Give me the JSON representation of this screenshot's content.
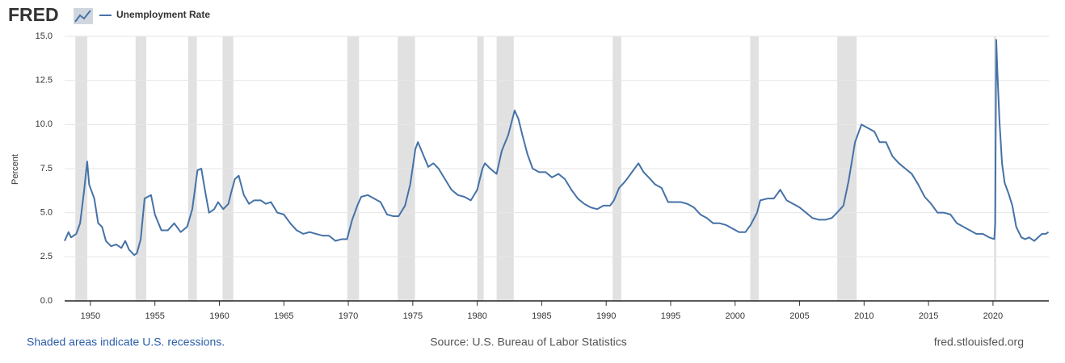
{
  "logo": "FRED",
  "chart_data": {
    "type": "line",
    "legend": "Unemployment Rate",
    "ylabel": "Percent",
    "xlim": [
      1948,
      2024.33
    ],
    "ylim": [
      0,
      15
    ],
    "xticks": [
      1950,
      1955,
      1960,
      1965,
      1970,
      1975,
      1980,
      1985,
      1990,
      1995,
      2000,
      2005,
      2010,
      2015,
      2020
    ],
    "yticks": [
      {
        "value": 0,
        "label": "0.0"
      },
      {
        "value": 2.5,
        "label": "2.5"
      },
      {
        "value": 5,
        "label": "5.0"
      },
      {
        "value": 7.5,
        "label": "7.5"
      },
      {
        "value": 10,
        "label": "10.0"
      },
      {
        "value": 12.5,
        "label": "12.5"
      },
      {
        "value": 15,
        "label": "15.0"
      }
    ],
    "grid": true,
    "color": "#4572a7",
    "recession_color": "#e1e1e1",
    "recessions": [
      [
        1948.83,
        1949.75
      ],
      [
        1953.5,
        1954.33
      ],
      [
        1957.58,
        1958.25
      ],
      [
        1960.25,
        1961.08
      ],
      [
        1969.92,
        1970.83
      ],
      [
        1973.83,
        1975.17
      ],
      [
        1980.0,
        1980.5
      ],
      [
        1981.5,
        1982.83
      ],
      [
        1990.5,
        1991.17
      ],
      [
        2001.17,
        2001.83
      ],
      [
        2007.92,
        2009.42
      ],
      [
        2020.08,
        2020.25
      ]
    ],
    "x": [
      1948.0,
      1948.3,
      1948.5,
      1948.9,
      1949.2,
      1949.5,
      1949.75,
      1949.9,
      1950.3,
      1950.6,
      1950.9,
      1951.2,
      1951.6,
      1952.0,
      1952.4,
      1952.7,
      1953.0,
      1953.4,
      1953.6,
      1953.9,
      1954.2,
      1954.7,
      1955.0,
      1955.5,
      1956.0,
      1956.5,
      1957.0,
      1957.5,
      1957.9,
      1958.3,
      1958.6,
      1958.9,
      1959.2,
      1959.6,
      1959.9,
      1960.3,
      1960.7,
      1960.9,
      1961.2,
      1961.5,
      1961.9,
      1962.3,
      1962.7,
      1963.2,
      1963.6,
      1964.0,
      1964.5,
      1965.0,
      1965.5,
      1966.0,
      1966.5,
      1967.0,
      1967.5,
      1968.0,
      1968.5,
      1969.0,
      1969.5,
      1969.9,
      1970.3,
      1970.7,
      1971.0,
      1971.5,
      1972.0,
      1972.5,
      1973.0,
      1973.5,
      1973.9,
      1974.4,
      1974.8,
      1975.2,
      1975.4,
      1975.8,
      1976.2,
      1976.6,
      1977.0,
      1977.5,
      1978.0,
      1978.5,
      1979.0,
      1979.5,
      1980.0,
      1980.4,
      1980.6,
      1981.0,
      1981.5,
      1981.9,
      1982.4,
      1982.9,
      1983.2,
      1983.5,
      1983.9,
      1984.3,
      1984.8,
      1985.3,
      1985.8,
      1986.3,
      1986.8,
      1987.3,
      1987.8,
      1988.3,
      1988.8,
      1989.3,
      1989.8,
      1990.3,
      1990.6,
      1991.0,
      1991.5,
      1992.0,
      1992.5,
      1992.9,
      1993.3,
      1993.8,
      1994.3,
      1994.8,
      1995.3,
      1995.8,
      1996.3,
      1996.8,
      1997.3,
      1997.8,
      1998.3,
      1998.8,
      1999.3,
      1999.8,
      2000.3,
      2000.8,
      2001.2,
      2001.7,
      2001.95,
      2002.5,
      2003.0,
      2003.5,
      2004.0,
      2004.5,
      2005.0,
      2005.5,
      2006.0,
      2006.5,
      2007.0,
      2007.5,
      2007.9,
      2008.4,
      2008.8,
      2009.3,
      2009.8,
      2010.3,
      2010.8,
      2011.2,
      2011.7,
      2012.2,
      2012.7,
      2013.2,
      2013.7,
      2014.2,
      2014.7,
      2015.2,
      2015.7,
      2016.2,
      2016.7,
      2017.2,
      2017.7,
      2018.2,
      2018.7,
      2019.2,
      2019.7,
      2020.1,
      2020.17,
      2020.25,
      2020.33,
      2020.5,
      2020.7,
      2020.9,
      2021.2,
      2021.5,
      2021.8,
      2022.2,
      2022.5,
      2022.8,
      2023.2,
      2023.5,
      2023.8,
      2024.1,
      2024.3
    ],
    "values": [
      3.4,
      3.9,
      3.6,
      3.8,
      4.4,
      6.2,
      7.9,
      6.6,
      5.8,
      4.4,
      4.2,
      3.4,
      3.1,
      3.2,
      3.0,
      3.4,
      2.9,
      2.6,
      2.7,
      3.5,
      5.8,
      6.0,
      4.9,
      4.0,
      4.0,
      4.4,
      3.9,
      4.2,
      5.2,
      7.4,
      7.5,
      6.2,
      5.0,
      5.2,
      5.6,
      5.2,
      5.5,
      6.1,
      6.9,
      7.1,
      6.0,
      5.5,
      5.7,
      5.7,
      5.5,
      5.6,
      5.0,
      4.9,
      4.4,
      4.0,
      3.8,
      3.9,
      3.8,
      3.7,
      3.7,
      3.4,
      3.5,
      3.5,
      4.6,
      5.4,
      5.9,
      6.0,
      5.8,
      5.6,
      4.9,
      4.8,
      4.8,
      5.4,
      6.6,
      8.6,
      9.0,
      8.3,
      7.6,
      7.8,
      7.5,
      6.9,
      6.3,
      6.0,
      5.9,
      5.7,
      6.3,
      7.5,
      7.8,
      7.5,
      7.2,
      8.5,
      9.4,
      10.8,
      10.3,
      9.4,
      8.3,
      7.5,
      7.3,
      7.3,
      7.0,
      7.2,
      6.9,
      6.3,
      5.8,
      5.5,
      5.3,
      5.2,
      5.4,
      5.4,
      5.7,
      6.4,
      6.8,
      7.3,
      7.8,
      7.3,
      7.0,
      6.6,
      6.4,
      5.6,
      5.6,
      5.6,
      5.5,
      5.3,
      4.9,
      4.7,
      4.4,
      4.4,
      4.3,
      4.1,
      3.9,
      3.9,
      4.3,
      5.0,
      5.7,
      5.8,
      5.8,
      6.3,
      5.7,
      5.5,
      5.3,
      5.0,
      4.7,
      4.6,
      4.6,
      4.7,
      5.0,
      5.4,
      6.8,
      9.0,
      10.0,
      9.8,
      9.6,
      9.0,
      9.0,
      8.2,
      7.8,
      7.5,
      7.2,
      6.6,
      5.9,
      5.5,
      5.0,
      5.0,
      4.9,
      4.4,
      4.2,
      4.0,
      3.8,
      3.8,
      3.6,
      3.5,
      4.4,
      14.8,
      13.2,
      10.2,
      7.8,
      6.7,
      6.1,
      5.4,
      4.2,
      3.6,
      3.5,
      3.6,
      3.4,
      3.6,
      3.8,
      3.8,
      3.9
    ],
    "footer_left": "Shaded areas indicate U.S. recessions.",
    "footer_center": "Source: U.S. Bureau of Labor Statistics",
    "footer_right": "fred.stlouisfed.org"
  }
}
